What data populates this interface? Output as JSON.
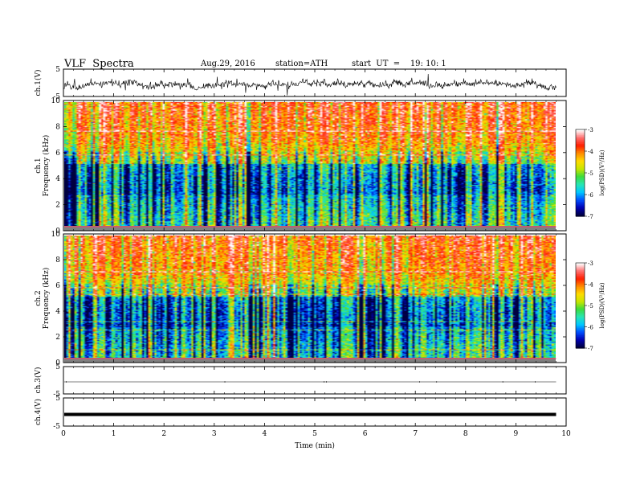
{
  "header": {
    "title": "VLF  Spectra",
    "date": "Aug.29, 2016",
    "station": "station=ATH",
    "start_ut": "start  UT  =    19: 10: 1"
  },
  "chart_data": {
    "type": "heatmap",
    "xlabel": "Time  (min)",
    "xlim": [
      0,
      10
    ],
    "x_ticks": [
      "0",
      "1",
      "2",
      "3",
      "4",
      "5",
      "6",
      "7",
      "8",
      "9",
      "10"
    ],
    "panels": [
      {
        "id": "ch1-waveform",
        "type": "line",
        "ylabel": "ch.1(V)",
        "ylim": [
          -5,
          5
        ],
        "y_ticks": [
          "5",
          "-5"
        ],
        "x_data_end": 9.8
      },
      {
        "id": "ch1-spectrogram",
        "type": "heatmap",
        "ylabel_top": "ch.1",
        "ylabel": "Frequency  (kHz)",
        "ylim": [
          0,
          10
        ],
        "y_ticks": [
          "10",
          "8",
          "6",
          "4",
          "2",
          "0"
        ],
        "x_data_end": 9.8,
        "colorbar": {
          "label": "log(PSD)(V²/Hz)",
          "range": [
            -7,
            -3
          ],
          "ticks": [
            "-3",
            "-4",
            "-5",
            "-6",
            "-7"
          ]
        }
      },
      {
        "id": "ch2-spectrogram",
        "type": "heatmap",
        "ylabel_top": "ch.2",
        "ylabel": "Frequency  (kHz)",
        "ylim": [
          0,
          10
        ],
        "y_ticks": [
          "10",
          "8",
          "6",
          "4",
          "2",
          "0"
        ],
        "x_data_end": 9.8,
        "colorbar": {
          "label": "log(PSD)(V²/Hz)",
          "range": [
            -7,
            -3
          ],
          "ticks": [
            "-3",
            "-4",
            "-5",
            "-6",
            "-7"
          ]
        }
      },
      {
        "id": "ch3-waveform",
        "type": "line",
        "ylabel": "ch.3(V)",
        "ylim": [
          -5,
          5
        ],
        "y_ticks": [
          "5",
          "-5"
        ],
        "x_data_end": 9.8
      },
      {
        "id": "ch4-waveform",
        "type": "line",
        "ylabel": "ch.4(V)",
        "ylim": [
          -5,
          5
        ],
        "y_ticks": [
          "5",
          "-5"
        ],
        "x_data_end": 9.8
      }
    ]
  },
  "colors": {
    "colormap": [
      "#000040",
      "#0000b4",
      "#0050ff",
      "#00c8ff",
      "#28e6b4",
      "#3cdc3c",
      "#c8e600",
      "#ffdc00",
      "#ff8c00",
      "#ff1e00",
      "#ff6e6e",
      "#ffffff"
    ],
    "axis": "#000000",
    "spectrogram_floor": "#808080"
  }
}
